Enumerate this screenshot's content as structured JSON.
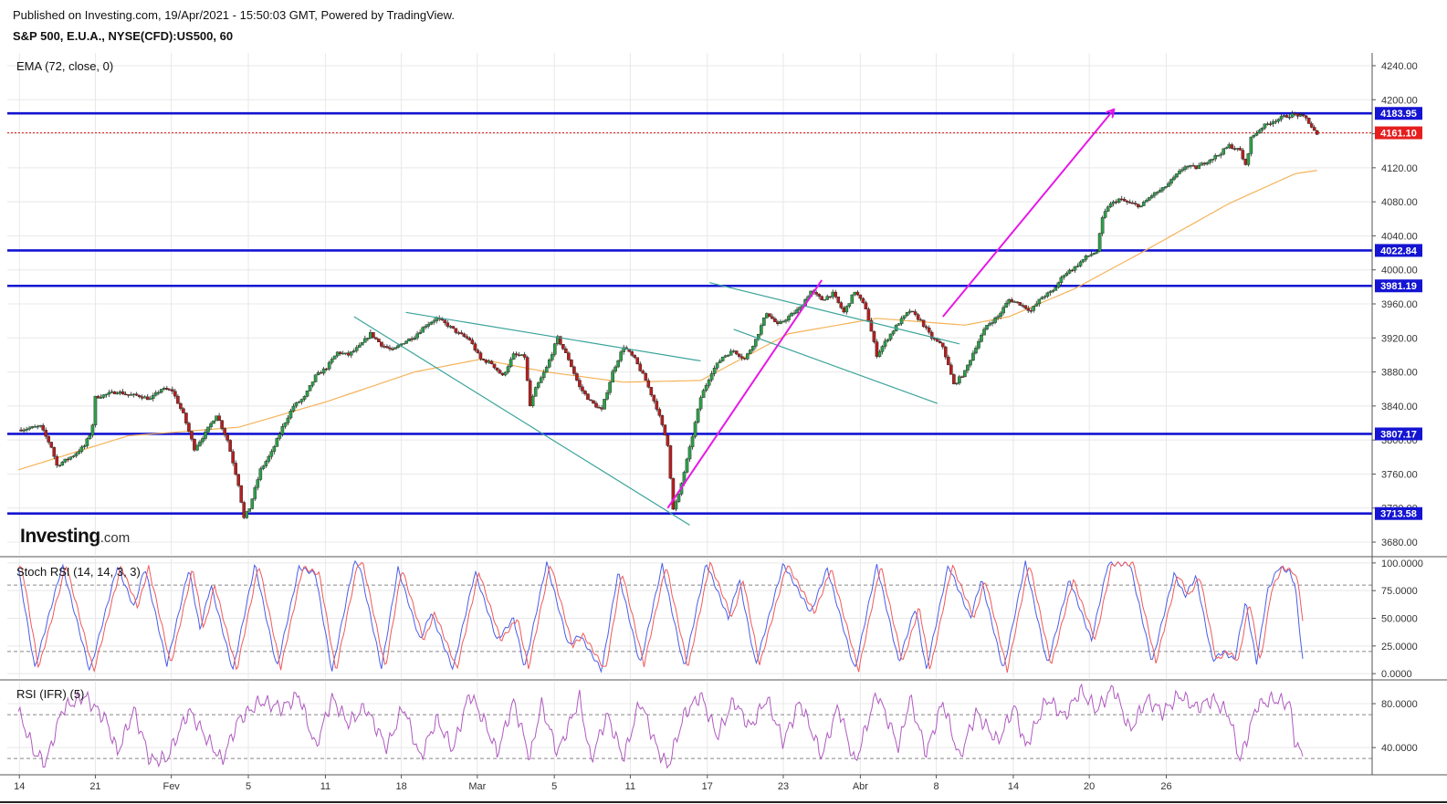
{
  "header": {
    "published": "Published on Investing.com, 19/Apr/2021 - 15:50:03 GMT, Powered by TradingView.",
    "symbol": "S&P 500, E.U.A., NYSE(CFD):US500, 60"
  },
  "logo": {
    "brand": "Investing",
    "suffix": ".com"
  },
  "chart_data": [
    {
      "type": "candlestick",
      "title": "S&P 500, E.U.A., NYSE(CFD):US500, 60",
      "indicator": "EMA (72, close, 0)",
      "ylim": [
        3665,
        4255
      ],
      "y_ticks": [
        "4240.00",
        "4200.00",
        "4160.00",
        "4120.00",
        "4080.00",
        "4040.00",
        "4000.00",
        "3960.00",
        "3920.00",
        "3880.00",
        "3840.00",
        "3800.00",
        "3760.00",
        "3720.00",
        "3680.00"
      ],
      "x_ticks": [
        {
          "label": "14",
          "pos": 0.1
        },
        {
          "label": "21",
          "pos": 7.0
        },
        {
          "label": "Fev",
          "pos": 13.9
        },
        {
          "label": "5",
          "pos": 20.9
        },
        {
          "label": "11",
          "pos": 27.9
        },
        {
          "label": "18",
          "pos": 34.8
        },
        {
          "label": "Mar",
          "pos": 41.7
        },
        {
          "label": "5",
          "pos": 48.7
        },
        {
          "label": "11",
          "pos": 55.6
        },
        {
          "label": "17",
          "pos": 62.6
        },
        {
          "label": "23",
          "pos": 69.5
        },
        {
          "label": "Abr",
          "pos": 76.5
        },
        {
          "label": "8",
          "pos": 83.4
        },
        {
          "label": "14",
          "pos": 90.4
        },
        {
          "label": "20",
          "pos": 97.3
        },
        {
          "label": "26",
          "pos": 104.3
        }
      ],
      "xlim": [
        -1.0,
        123.0
      ],
      "price_path": [
        [
          0,
          3812
        ],
        [
          2,
          3816
        ],
        [
          3,
          3792
        ],
        [
          3.5,
          3770
        ],
        [
          5,
          3782
        ],
        [
          6,
          3793
        ],
        [
          6.7,
          3812
        ],
        [
          7,
          3850
        ],
        [
          9,
          3857
        ],
        [
          10,
          3853
        ],
        [
          11,
          3852
        ],
        [
          12,
          3848
        ],
        [
          13,
          3860
        ],
        [
          14,
          3858
        ],
        [
          15,
          3830
        ],
        [
          16,
          3790
        ],
        [
          17,
          3808
        ],
        [
          18,
          3830
        ],
        [
          19,
          3800
        ],
        [
          20,
          3748
        ],
        [
          20.5,
          3708
        ],
        [
          21,
          3720
        ],
        [
          22,
          3765
        ],
        [
          23,
          3785
        ],
        [
          24,
          3815
        ],
        [
          25,
          3840
        ],
        [
          26,
          3850
        ],
        [
          27,
          3875
        ],
        [
          28,
          3885
        ],
        [
          29,
          3903
        ],
        [
          30,
          3900
        ],
        [
          31,
          3910
        ],
        [
          32,
          3925
        ],
        [
          33,
          3912
        ],
        [
          34,
          3905
        ],
        [
          35,
          3915
        ],
        [
          36,
          3922
        ],
        [
          37,
          3935
        ],
        [
          38,
          3943
        ],
        [
          39,
          3935
        ],
        [
          40,
          3925
        ],
        [
          41,
          3918
        ],
        [
          42,
          3895
        ],
        [
          43,
          3890
        ],
        [
          44,
          3875
        ],
        [
          45,
          3900
        ],
        [
          46,
          3898
        ],
        [
          46.5,
          3840
        ],
        [
          47,
          3860
        ],
        [
          48,
          3885
        ],
        [
          49,
          3920
        ],
        [
          50,
          3895
        ],
        [
          51,
          3862
        ],
        [
          52,
          3845
        ],
        [
          53,
          3835
        ],
        [
          54,
          3880
        ],
        [
          55,
          3910
        ],
        [
          56,
          3895
        ],
        [
          57,
          3870
        ],
        [
          58,
          3838
        ],
        [
          59,
          3795
        ],
        [
          59.5,
          3718
        ],
        [
          60,
          3735
        ],
        [
          61,
          3790
        ],
        [
          62,
          3850
        ],
        [
          63,
          3880
        ],
        [
          64,
          3898
        ],
        [
          65,
          3905
        ],
        [
          66,
          3895
        ],
        [
          67,
          3918
        ],
        [
          68,
          3950
        ],
        [
          69,
          3935
        ],
        [
          70,
          3945
        ],
        [
          71,
          3955
        ],
        [
          72,
          3975
        ],
        [
          73,
          3965
        ],
        [
          74,
          3972
        ],
        [
          75,
          3950
        ],
        [
          76,
          3975
        ],
        [
          77,
          3955
        ],
        [
          78,
          3900
        ],
        [
          79,
          3920
        ],
        [
          80,
          3938
        ],
        [
          81,
          3952
        ],
        [
          82,
          3940
        ],
        [
          83,
          3920
        ],
        [
          84,
          3910
        ],
        [
          85,
          3865
        ],
        [
          86,
          3880
        ],
        [
          87,
          3910
        ],
        [
          88,
          3935
        ],
        [
          89,
          3945
        ],
        [
          90,
          3965
        ],
        [
          91,
          3960
        ],
        [
          92,
          3952
        ],
        [
          93,
          3968
        ],
        [
          94,
          3975
        ],
        [
          95,
          3995
        ],
        [
          96,
          4003
        ],
        [
          97,
          4015
        ],
        [
          98,
          4022
        ],
        [
          98.5,
          4060
        ],
        [
          99,
          4075
        ],
        [
          100,
          4083
        ],
        [
          101,
          4078
        ],
        [
          102,
          4075
        ],
        [
          103,
          4088
        ],
        [
          104,
          4095
        ],
        [
          105,
          4108
        ],
        [
          106,
          4122
        ],
        [
          107,
          4120
        ],
        [
          108,
          4128
        ],
        [
          109,
          4135
        ],
        [
          110,
          4146
        ],
        [
          111,
          4140
        ],
        [
          111.5,
          4122
        ],
        [
          112,
          4155
        ],
        [
          113,
          4168
        ],
        [
          114,
          4175
        ],
        [
          115,
          4180
        ],
        [
          116,
          4183
        ],
        [
          117,
          4178
        ],
        [
          118,
          4158
        ]
      ],
      "ema": [
        [
          0,
          3765
        ],
        [
          10,
          3805
        ],
        [
          20,
          3815
        ],
        [
          28,
          3845
        ],
        [
          36,
          3880
        ],
        [
          42,
          3895
        ],
        [
          48,
          3880
        ],
        [
          55,
          3868
        ],
        [
          62,
          3870
        ],
        [
          70,
          3925
        ],
        [
          78,
          3943
        ],
        [
          86,
          3935
        ],
        [
          90,
          3945
        ],
        [
          96,
          3978
        ],
        [
          102,
          4020
        ],
        [
          110,
          4078
        ],
        [
          116,
          4113
        ],
        [
          118,
          4117
        ]
      ],
      "horizontal_levels": [
        {
          "value": 4183.95,
          "label": "4183.95",
          "color": "#1414d2",
          "style": "solid"
        },
        {
          "value": 4161.1,
          "label": "4161.10",
          "color": "#e61e1e",
          "style": "dotted"
        },
        {
          "value": 4022.84,
          "label": "4022.84",
          "color": "#1414d2",
          "style": "solid"
        },
        {
          "value": 3981.19,
          "label": "3981.19",
          "color": "#1414d2",
          "style": "solid"
        },
        {
          "value": 3807.17,
          "label": "3807.17",
          "color": "#1414d2",
          "style": "solid"
        },
        {
          "value": 3713.58,
          "label": "3713.58",
          "color": "#1414d2",
          "style": "solid"
        }
      ],
      "trendlines": [
        {
          "color": "#3aa39a",
          "from": [
            30.5,
            3945
          ],
          "to": [
            61.0,
            3700
          ]
        },
        {
          "color": "#3aa39a",
          "from": [
            35.2,
            3950
          ],
          "to": [
            62.0,
            3893
          ]
        },
        {
          "color": "#3aa39a",
          "from": [
            62.8,
            3985
          ],
          "to": [
            85.5,
            3913
          ]
        },
        {
          "color": "#3aa39a",
          "from": [
            65.0,
            3930
          ],
          "to": [
            83.5,
            3843
          ]
        },
        {
          "color": "#e619e6",
          "from": [
            59.0,
            3720
          ],
          "to": [
            73.0,
            3988
          ],
          "arrow": false
        },
        {
          "color": "#e619e6",
          "from": [
            84.0,
            3945
          ],
          "to": [
            99.5,
            4188
          ],
          "arrow": true
        }
      ],
      "colors": {
        "up": "#2e9e4a",
        "down": "#b51f1f",
        "ema": "#f5b35a",
        "grid": "#e8e8e8"
      }
    },
    {
      "type": "line",
      "indicator": "Stoch RSI (14, 14, 3, 3)",
      "ylim": [
        -4,
        104
      ],
      "y_ticks": [
        "100.0000",
        "75.0000",
        "50.0000",
        "25.0000",
        "0.0000"
      ],
      "levels": [
        80,
        20
      ],
      "series": [
        {
          "name": "K",
          "color": "#4a5ee8"
        },
        {
          "name": "D",
          "color": "#ef5a5a"
        }
      ],
      "cycles": [
        [
          0,
          95
        ],
        [
          1.5,
          5
        ],
        [
          4,
          98
        ],
        [
          6.5,
          2
        ],
        [
          9,
          97
        ],
        [
          10.5,
          60
        ],
        [
          11.5,
          96
        ],
        [
          13.5,
          8
        ],
        [
          15.5,
          95
        ],
        [
          16.5,
          40
        ],
        [
          17.5,
          80
        ],
        [
          19.5,
          3
        ],
        [
          21.5,
          99
        ],
        [
          23.5,
          5
        ],
        [
          25.5,
          96
        ],
        [
          27,
          90
        ],
        [
          28.5,
          2
        ],
        [
          30.5,
          100
        ],
        [
          31,
          98
        ],
        [
          33,
          5
        ],
        [
          34.5,
          95
        ],
        [
          36.5,
          30
        ],
        [
          37.5,
          55
        ],
        [
          39.5,
          4
        ],
        [
          41.5,
          92
        ],
        [
          43.5,
          30
        ],
        [
          45,
          50
        ],
        [
          46,
          5
        ],
        [
          48,
          100
        ],
        [
          50,
          25
        ],
        [
          51,
          35
        ],
        [
          53,
          3
        ],
        [
          54.5,
          92
        ],
        [
          56.5,
          8
        ],
        [
          58.5,
          98
        ],
        [
          60.5,
          5
        ],
        [
          62.5,
          100
        ],
        [
          64.5,
          50
        ],
        [
          65.5,
          85
        ],
        [
          67,
          8
        ],
        [
          69.5,
          99
        ],
        [
          72,
          55
        ],
        [
          73.5,
          95
        ],
        [
          76,
          3
        ],
        [
          78,
          98
        ],
        [
          80,
          10
        ],
        [
          81.5,
          60
        ],
        [
          82.5,
          3
        ],
        [
          84.5,
          98
        ],
        [
          86.5,
          50
        ],
        [
          87.5,
          85
        ],
        [
          89.5,
          3
        ],
        [
          91.5,
          100
        ],
        [
          93.5,
          8
        ],
        [
          95.5,
          85
        ],
        [
          97.5,
          30
        ],
        [
          99,
          99
        ],
        [
          101,
          99
        ],
        [
          103,
          10
        ],
        [
          105,
          90
        ],
        [
          106,
          70
        ],
        [
          107,
          88
        ],
        [
          108.5,
          12
        ],
        [
          109.5,
          20
        ],
        [
          110.5,
          12
        ],
        [
          111.5,
          65
        ],
        [
          112.5,
          10
        ],
        [
          113.5,
          75
        ],
        [
          114.5,
          96
        ],
        [
          115.5,
          92
        ],
        [
          116,
          80
        ],
        [
          116.8,
          2
        ]
      ]
    },
    {
      "type": "line",
      "indicator": "RSI (IFR) (5)",
      "ylim": [
        16,
        100
      ],
      "y_ticks": [
        "80.0000",
        "40.0000"
      ],
      "levels": [
        70,
        30
      ],
      "series": [
        {
          "name": "RSI",
          "color": "#b05ac0"
        }
      ],
      "cycles": [
        [
          0,
          73
        ],
        [
          1.5,
          35
        ],
        [
          2.5,
          26
        ],
        [
          4,
          75
        ],
        [
          6,
          87
        ],
        [
          8,
          65
        ],
        [
          9,
          35
        ],
        [
          10.5,
          74
        ],
        [
          12,
          28
        ],
        [
          13.5,
          30
        ],
        [
          15.5,
          74
        ],
        [
          17,
          50
        ],
        [
          18.5,
          28
        ],
        [
          20,
          65
        ],
        [
          22,
          82
        ],
        [
          24,
          76
        ],
        [
          25.5,
          88
        ],
        [
          27,
          40
        ],
        [
          28.5,
          85
        ],
        [
          30,
          62
        ],
        [
          31.5,
          77
        ],
        [
          33.5,
          40
        ],
        [
          35,
          78
        ],
        [
          36.5,
          30
        ],
        [
          38,
          66
        ],
        [
          39.5,
          38
        ],
        [
          41,
          90
        ],
        [
          42.5,
          60
        ],
        [
          43.5,
          35
        ],
        [
          45,
          82
        ],
        [
          46.5,
          30
        ],
        [
          47.5,
          80
        ],
        [
          49,
          35
        ],
        [
          51,
          85
        ],
        [
          52,
          28
        ],
        [
          53.5,
          70
        ],
        [
          55,
          30
        ],
        [
          56.5,
          83
        ],
        [
          58,
          40
        ],
        [
          59,
          22
        ],
        [
          60.5,
          70
        ],
        [
          62,
          88
        ],
        [
          63.5,
          50
        ],
        [
          65,
          83
        ],
        [
          66.5,
          58
        ],
        [
          68,
          85
        ],
        [
          69.5,
          45
        ],
        [
          71,
          82
        ],
        [
          73,
          32
        ],
        [
          74.5,
          78
        ],
        [
          76,
          25
        ],
        [
          78,
          90
        ],
        [
          80,
          40
        ],
        [
          81,
          85
        ],
        [
          82.5,
          35
        ],
        [
          84,
          82
        ],
        [
          85.5,
          30
        ],
        [
          87,
          72
        ],
        [
          89,
          45
        ],
        [
          90.5,
          78
        ],
        [
          91.5,
          40
        ],
        [
          93.5,
          85
        ],
        [
          95,
          68
        ],
        [
          96.5,
          92
        ],
        [
          98,
          74
        ],
        [
          99.5,
          95
        ],
        [
          101,
          55
        ],
        [
          102.5,
          84
        ],
        [
          104,
          72
        ],
        [
          105.5,
          88
        ],
        [
          107,
          76
        ],
        [
          108.5,
          84
        ],
        [
          110,
          70
        ],
        [
          111,
          28
        ],
        [
          112.5,
          78
        ],
        [
          114,
          84
        ],
        [
          115.5,
          80
        ],
        [
          116,
          45
        ],
        [
          116.8,
          30
        ]
      ]
    }
  ]
}
